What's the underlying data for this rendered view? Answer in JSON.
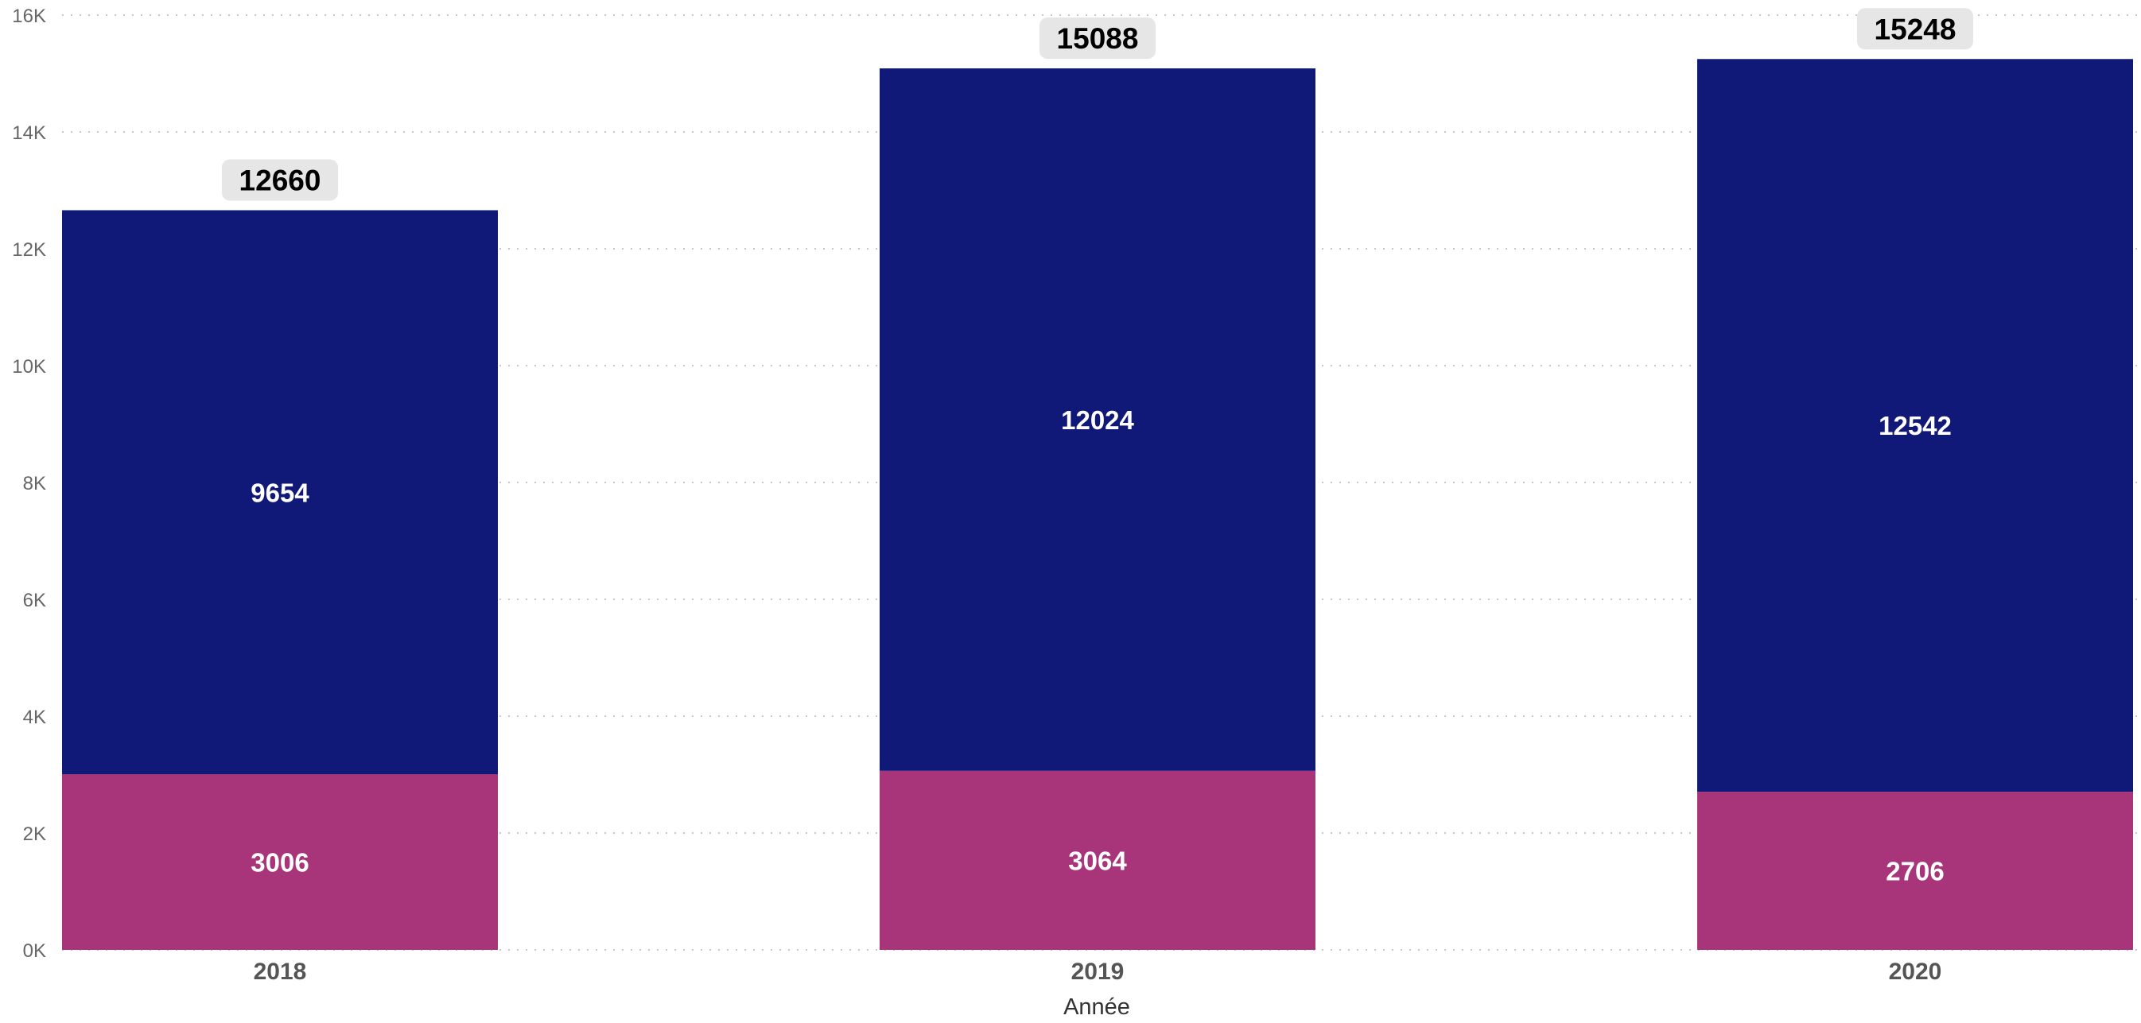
{
  "chart_data": {
    "type": "bar",
    "stacked": true,
    "categories": [
      "2018",
      "2019",
      "2020"
    ],
    "series": [
      {
        "values": [
          3006,
          3064,
          2706
        ],
        "color": "#a8357a"
      },
      {
        "values": [
          9654,
          12024,
          12542
        ],
        "color": "#101878"
      }
    ],
    "totals": [
      12660,
      15088,
      15248
    ],
    "total_label_bg": "#e6e6e6",
    "xlabel": "Année",
    "ylabel": "",
    "ylim": [
      0,
      16000
    ],
    "yticks": [
      0,
      2000,
      4000,
      6000,
      8000,
      10000,
      12000,
      14000,
      16000
    ],
    "ytick_labels": [
      "0K",
      "2K",
      "4K",
      "6K",
      "8K",
      "10K",
      "12K",
      "14K",
      "16K"
    ],
    "grid": true,
    "legend": "none"
  }
}
